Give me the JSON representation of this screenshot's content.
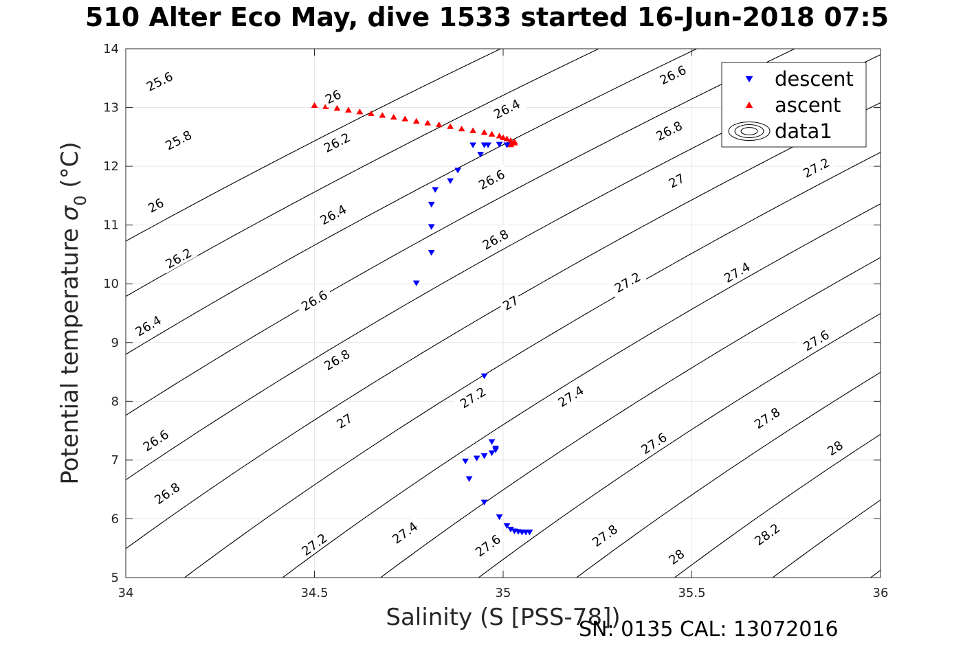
{
  "figure": {
    "title": "510 Alter Eco May, dive 1533 started 16-Jun-2018 07:5",
    "footer": "SN: 0135  CAL: 13072016"
  },
  "chart_data": {
    "type": "scatter",
    "title": "510 Alter Eco May, dive 1533 started 16-Jun-2018 07:5",
    "xlabel": "Salinity (S [PSS-78])",
    "ylabel": "Potential temperature",
    "ylabel_symbol": "σ",
    "ylabel_subscript": "0",
    "ylabel_unit": "(°C)",
    "xlim": [
      34,
      36
    ],
    "ylim": [
      5,
      14
    ],
    "xticks": [
      "34",
      "34.5",
      "35",
      "35.5",
      "36"
    ],
    "yticks": [
      "5",
      "6",
      "7",
      "8",
      "9",
      "10",
      "11",
      "12",
      "13",
      "14"
    ],
    "grid": true,
    "legend_position": "top-right",
    "series": [
      {
        "name": "descent",
        "marker": "triangle-down",
        "color": "#0000ff",
        "points": [
          [
            34.96,
            12.36
          ],
          [
            34.99,
            12.37
          ],
          [
            35.01,
            12.36
          ],
          [
            34.92,
            12.36
          ],
          [
            34.95,
            12.36
          ],
          [
            34.94,
            12.2
          ],
          [
            34.88,
            11.93
          ],
          [
            34.86,
            11.75
          ],
          [
            34.82,
            11.6
          ],
          [
            34.81,
            11.35
          ],
          [
            34.81,
            10.97
          ],
          [
            34.81,
            10.53
          ],
          [
            34.77,
            10.01
          ],
          [
            34.95,
            8.43
          ],
          [
            34.97,
            7.31
          ],
          [
            34.98,
            7.17
          ],
          [
            34.97,
            7.12
          ],
          [
            34.98,
            7.2
          ],
          [
            34.95,
            7.07
          ],
          [
            34.93,
            7.03
          ],
          [
            34.9,
            6.98
          ],
          [
            34.91,
            6.68
          ],
          [
            34.95,
            6.28
          ],
          [
            34.99,
            6.03
          ],
          [
            35.01,
            5.88
          ],
          [
            35.02,
            5.82
          ],
          [
            35.03,
            5.79
          ],
          [
            35.04,
            5.78
          ],
          [
            35.05,
            5.77
          ],
          [
            35.06,
            5.77
          ],
          [
            35.07,
            5.77
          ]
        ]
      },
      {
        "name": "ascent",
        "marker": "triangle-up",
        "color": "#ff0000",
        "points": [
          [
            34.5,
            13.04
          ],
          [
            34.53,
            13.02
          ],
          [
            34.56,
            12.99
          ],
          [
            34.59,
            12.96
          ],
          [
            34.62,
            12.93
          ],
          [
            34.65,
            12.9
          ],
          [
            34.68,
            12.87
          ],
          [
            34.71,
            12.84
          ],
          [
            34.74,
            12.81
          ],
          [
            34.77,
            12.77
          ],
          [
            34.8,
            12.74
          ],
          [
            34.83,
            12.71
          ],
          [
            34.86,
            12.68
          ],
          [
            34.89,
            12.64
          ],
          [
            34.92,
            12.61
          ],
          [
            34.95,
            12.58
          ],
          [
            34.97,
            12.55
          ],
          [
            34.99,
            12.52
          ],
          [
            35.0,
            12.49
          ],
          [
            35.01,
            12.47
          ],
          [
            35.02,
            12.44
          ],
          [
            35.03,
            12.42
          ],
          [
            35.03,
            12.4
          ],
          [
            35.02,
            12.38
          ],
          [
            35.02,
            12.37
          ]
        ]
      },
      {
        "name": "data1",
        "type": "contour",
        "color": "#000000",
        "levels": [
          25.6,
          25.8,
          26.0,
          26.2,
          26.4,
          26.6,
          26.8,
          27.0,
          27.2,
          27.4,
          27.6,
          27.8,
          28.0,
          28.2
        ],
        "labels": [
          {
            "level": "25.6",
            "s": 34.09,
            "t": 13.44
          },
          {
            "level": "25.8",
            "s": 34.14,
            "t": 12.44
          },
          {
            "level": "26",
            "s": 34.08,
            "t": 11.33
          },
          {
            "level": "26.2",
            "s": 34.14,
            "t": 10.43
          },
          {
            "level": "26.4",
            "s": 34.06,
            "t": 9.28
          },
          {
            "level": "26.6",
            "s": 34.08,
            "t": 7.33
          },
          {
            "level": "26.8",
            "s": 34.11,
            "t": 6.43
          },
          {
            "level": "26",
            "s": 34.55,
            "t": 13.18
          },
          {
            "level": "26.2",
            "s": 34.56,
            "t": 12.4
          },
          {
            "level": "26.4",
            "s": 34.55,
            "t": 11.17
          },
          {
            "level": "26.6",
            "s": 34.5,
            "t": 9.71
          },
          {
            "level": "26.8",
            "s": 34.56,
            "t": 8.7
          },
          {
            "level": "27",
            "s": 34.58,
            "t": 7.66
          },
          {
            "level": "27.2",
            "s": 34.5,
            "t": 5.56
          },
          {
            "level": "26.4",
            "s": 35.01,
            "t": 12.97
          },
          {
            "level": "26.6",
            "s": 34.97,
            "t": 11.77
          },
          {
            "level": "26.8",
            "s": 34.98,
            "t": 10.75
          },
          {
            "level": "27",
            "s": 35.02,
            "t": 9.67
          },
          {
            "level": "27.2",
            "s": 34.92,
            "t": 8.06
          },
          {
            "level": "27.4",
            "s": 34.74,
            "t": 5.76
          },
          {
            "level": "27.6",
            "s": 34.96,
            "t": 5.54
          },
          {
            "level": "26.6",
            "s": 35.45,
            "t": 13.55
          },
          {
            "level": "26.8",
            "s": 35.44,
            "t": 12.6
          },
          {
            "level": "27",
            "s": 35.46,
            "t": 11.75
          },
          {
            "level": "27.2",
            "s": 35.33,
            "t": 10.02
          },
          {
            "level": "27.4",
            "s": 35.18,
            "t": 8.08
          },
          {
            "level": "27.6",
            "s": 35.4,
            "t": 7.28
          },
          {
            "level": "27.8",
            "s": 35.27,
            "t": 5.71
          },
          {
            "level": "28",
            "s": 35.46,
            "t": 5.35
          },
          {
            "level": "27.2",
            "s": 35.83,
            "t": 11.97
          },
          {
            "level": "27.4",
            "s": 35.62,
            "t": 10.19
          },
          {
            "level": "27.6",
            "s": 35.83,
            "t": 9.03
          },
          {
            "level": "27.8",
            "s": 35.7,
            "t": 7.71
          },
          {
            "level": "28",
            "s": 35.88,
            "t": 7.2
          },
          {
            "level": "28.2",
            "s": 35.7,
            "t": 5.73
          }
        ]
      }
    ]
  }
}
